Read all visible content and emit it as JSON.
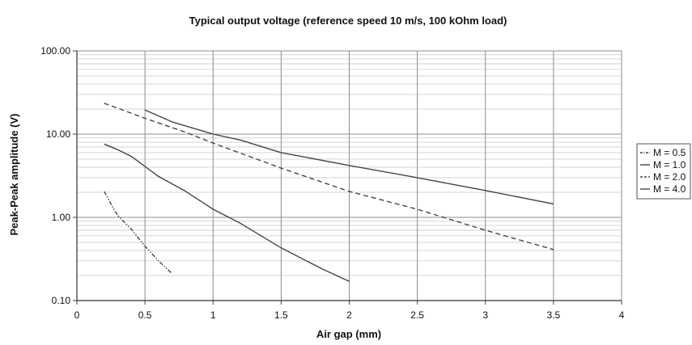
{
  "chart_data": {
    "type": "line",
    "title": "Typical output voltage (reference speed 10 m/s, 100 kOhm load)",
    "xlabel": "Air gap (mm)",
    "ylabel": "Peak-Peak amplitude (V)",
    "xlim": [
      0,
      4
    ],
    "ylim": [
      0.1,
      100
    ],
    "yscale": "log",
    "x_ticks": [
      "0",
      "0.5",
      "1",
      "1.5",
      "2",
      "2.5",
      "3",
      "3.5",
      "4"
    ],
    "y_ticks": [
      "100.00",
      "10.00",
      "1.00",
      "0.10"
    ],
    "grid": true,
    "legend_position": "right",
    "series": [
      {
        "name": "M = 0.5",
        "dash": "dash-dot-dot",
        "x": [
          0.2,
          0.25,
          0.3,
          0.4,
          0.5,
          0.6,
          0.7
        ],
        "y": [
          2.05,
          1.45,
          1.05,
          0.72,
          0.45,
          0.3,
          0.21
        ]
      },
      {
        "name": "M = 1.0",
        "dash": "solid",
        "x": [
          0.2,
          0.3,
          0.4,
          0.5,
          0.6,
          0.8,
          1.0,
          1.2,
          1.5,
          1.8,
          2.0
        ],
        "y": [
          7.6,
          6.5,
          5.4,
          4.1,
          3.1,
          2.05,
          1.25,
          0.85,
          0.43,
          0.24,
          0.17
        ]
      },
      {
        "name": "M = 2.0",
        "dash": "dashed",
        "x": [
          0.2,
          0.3,
          0.5,
          0.8,
          1.0,
          1.5,
          2.0,
          2.5,
          3.0,
          3.5
        ],
        "y": [
          23.5,
          20.5,
          15.5,
          10.5,
          7.8,
          3.9,
          2.05,
          1.25,
          0.7,
          0.41
        ]
      },
      {
        "name": "M = 4.0",
        "dash": "solid",
        "x": [
          0.5,
          0.7,
          1.0,
          1.2,
          1.5,
          2.0,
          2.5,
          3.0,
          3.5
        ],
        "y": [
          19.5,
          14.0,
          10.0,
          8.5,
          6.0,
          4.2,
          3.0,
          2.1,
          1.45
        ]
      }
    ]
  }
}
